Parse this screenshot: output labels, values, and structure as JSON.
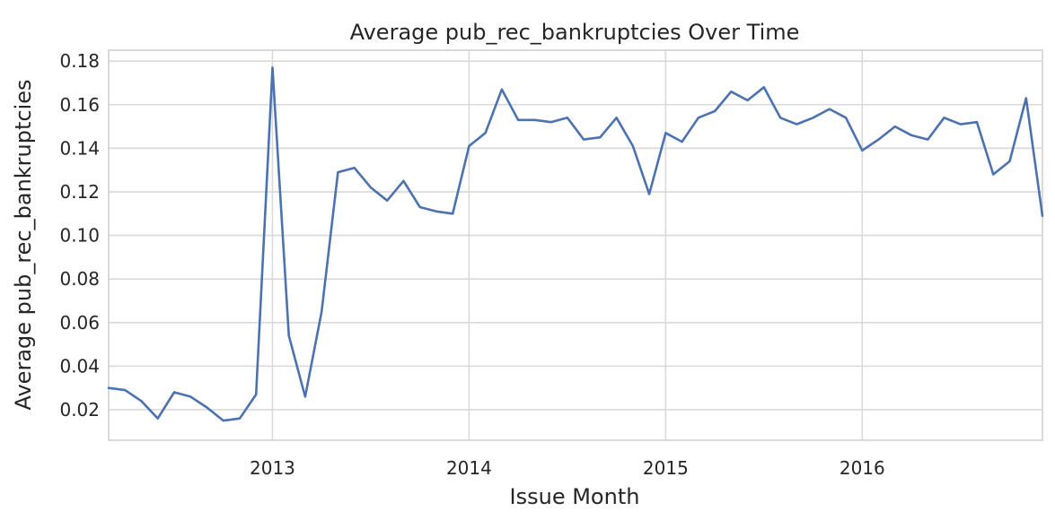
{
  "chart_data": {
    "type": "line",
    "title": "Average pub_rec_bankruptcies Over Time",
    "xlabel": "Issue Month",
    "ylabel": "Average pub_rec_bankruptcies",
    "x_type": "date",
    "xlim": [
      "2012-03",
      "2016-12"
    ],
    "ylim": [
      0.006,
      0.185
    ],
    "x_ticks": [
      {
        "value": "2013-01",
        "label": "2013"
      },
      {
        "value": "2014-01",
        "label": "2014"
      },
      {
        "value": "2015-01",
        "label": "2015"
      },
      {
        "value": "2016-01",
        "label": "2016"
      }
    ],
    "y_ticks": [
      {
        "value": 0.02,
        "label": "0.02"
      },
      {
        "value": 0.04,
        "label": "0.04"
      },
      {
        "value": 0.06,
        "label": "0.06"
      },
      {
        "value": 0.08,
        "label": "0.08"
      },
      {
        "value": 0.1,
        "label": "0.10"
      },
      {
        "value": 0.12,
        "label": "0.12"
      },
      {
        "value": 0.14,
        "label": "0.14"
      },
      {
        "value": 0.16,
        "label": "0.16"
      },
      {
        "value": 0.18,
        "label": "0.18"
      }
    ],
    "grid": true,
    "line_color": "#4c72b0",
    "series": [
      {
        "x": [
          "2012-03",
          "2012-04",
          "2012-05",
          "2012-06",
          "2012-07",
          "2012-08",
          "2012-09",
          "2012-10",
          "2012-11",
          "2012-12",
          "2013-01",
          "2013-02",
          "2013-03",
          "2013-04",
          "2013-05",
          "2013-06",
          "2013-07",
          "2013-08",
          "2013-09",
          "2013-10",
          "2013-11",
          "2013-12",
          "2014-01",
          "2014-02",
          "2014-03",
          "2014-04",
          "2014-05",
          "2014-06",
          "2014-07",
          "2014-08",
          "2014-09",
          "2014-10",
          "2014-11",
          "2014-12",
          "2015-01",
          "2015-02",
          "2015-03",
          "2015-04",
          "2015-05",
          "2015-06",
          "2015-07",
          "2015-08",
          "2015-09",
          "2015-10",
          "2015-11",
          "2015-12",
          "2016-01",
          "2016-02",
          "2016-03",
          "2016-04",
          "2016-05",
          "2016-06",
          "2016-07",
          "2016-08",
          "2016-09",
          "2016-10",
          "2016-11",
          "2016-12"
        ],
        "values": [
          0.03,
          0.029,
          0.024,
          0.016,
          0.028,
          0.026,
          0.021,
          0.015,
          0.016,
          0.027,
          0.177,
          0.054,
          0.026,
          0.065,
          0.129,
          0.131,
          0.122,
          0.116,
          0.125,
          0.113,
          0.111,
          0.11,
          0.141,
          0.147,
          0.167,
          0.153,
          0.153,
          0.152,
          0.154,
          0.144,
          0.145,
          0.154,
          0.141,
          0.119,
          0.147,
          0.143,
          0.154,
          0.157,
          0.166,
          0.162,
          0.168,
          0.154,
          0.151,
          0.154,
          0.158,
          0.154,
          0.139,
          0.144,
          0.15,
          0.146,
          0.144,
          0.154,
          0.151,
          0.152,
          0.128,
          0.134,
          0.163,
          0.109
        ]
      }
    ]
  }
}
